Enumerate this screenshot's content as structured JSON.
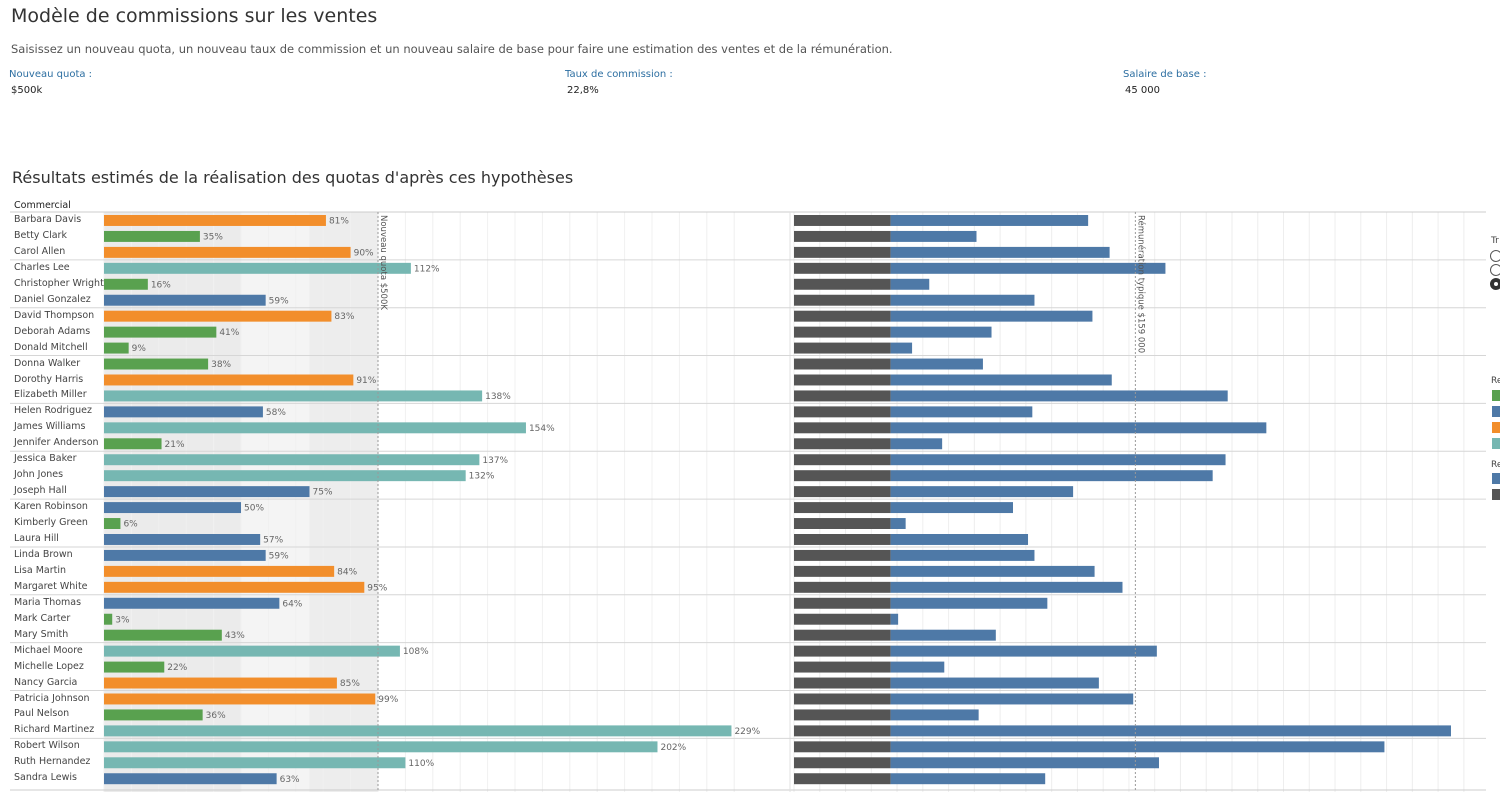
{
  "header": {
    "title": "Modèle de commissions sur les ventes",
    "subtitle": "Saisissez un nouveau quota, un nouveau taux de commission et un nouveau salaire de base pour faire une estimation des ventes et de la rémunération."
  },
  "parameters": [
    {
      "label": "Nouveau quota :",
      "value": "$500k"
    },
    {
      "label": "Taux de commission :",
      "value": "22,8%"
    },
    {
      "label": "Salaire de base :",
      "value": "45 000"
    }
  ],
  "section_title": "Résultats estimés de la réalisation des quotas d'après ces hypothèses",
  "column_header": "Commercial",
  "colors": {
    "green": "#59a14f",
    "blue": "#4e79a7",
    "orange": "#f28e2b",
    "teal": "#76b7b2",
    "dark": "#555555",
    "band1": "#ebebeb",
    "band2": "#f4f4f4"
  },
  "chart_data": [
    {
      "type": "bar",
      "title": "",
      "reference_line": {
        "label": "Nouveau quota $500K",
        "value": 100
      },
      "unit": "%",
      "categories": [
        "Barbara Davis",
        "Betty Clark",
        "Carol Allen",
        "Charles Lee",
        "Christopher Wright",
        "Daniel Gonzalez",
        "David Thompson",
        "Deborah Adams",
        "Donald Mitchell",
        "Donna Walker",
        "Dorothy Harris",
        "Elizabeth Miller",
        "Helen Rodriguez",
        "James Williams",
        "Jennifer Anderson",
        "Jessica Baker",
        "John Jones",
        "Joseph Hall",
        "Karen Robinson",
        "Kimberly Green",
        "Laura Hill",
        "Linda Brown",
        "Lisa Martin",
        "Margaret White",
        "Maria Thomas",
        "Mark Carter",
        "Mary Smith",
        "Michael Moore",
        "Michelle Lopez",
        "Nancy Garcia",
        "Patricia Johnson",
        "Paul Nelson",
        "Richard Martinez",
        "Robert Wilson",
        "Ruth Hernandez",
        "Sandra Lewis"
      ],
      "values": [
        81,
        35,
        90,
        112,
        16,
        59,
        83,
        41,
        9,
        38,
        91,
        138,
        58,
        154,
        21,
        137,
        132,
        75,
        50,
        6,
        57,
        59,
        84,
        95,
        64,
        3,
        43,
        108,
        22,
        85,
        99,
        36,
        229,
        202,
        110,
        63
      ],
      "value_labels": [
        "81%",
        "35%",
        "90%",
        "112%",
        "16%",
        "59%",
        "83%",
        "41%",
        "9%",
        "38%",
        "91%",
        "138%",
        "58%",
        "154%",
        "21%",
        "137%",
        "132%",
        "75%",
        "50%",
        "6%",
        "57%",
        "59%",
        "84%",
        "95%",
        "64%",
        "3%",
        "43%",
        "108%",
        "22%",
        "85%",
        "99%",
        "36%",
        "229%",
        "202%",
        "110%",
        "63%"
      ],
      "groups": [
        "orange",
        "green",
        "orange",
        "teal",
        "green",
        "blue",
        "orange",
        "green",
        "green",
        "green",
        "orange",
        "teal",
        "blue",
        "teal",
        "green",
        "teal",
        "teal",
        "blue",
        "blue",
        "green",
        "blue",
        "blue",
        "orange",
        "orange",
        "blue",
        "green",
        "green",
        "teal",
        "green",
        "orange",
        "orange",
        "green",
        "teal",
        "teal",
        "teal",
        "blue"
      ]
    },
    {
      "type": "bar",
      "title": "",
      "stacked": true,
      "reference_line": {
        "label": "Rémunération typique $159 000",
        "value": 159000
      },
      "series": [
        {
          "values": [
            45000,
            45000,
            45000,
            45000,
            45000,
            45000,
            45000,
            45000,
            45000,
            45000,
            45000,
            45000,
            45000,
            45000,
            45000,
            45000,
            45000,
            45000,
            45000,
            45000,
            45000,
            45000,
            45000,
            45000,
            45000,
            45000,
            45000,
            45000,
            45000,
            45000,
            45000,
            45000,
            45000,
            45000,
            45000,
            45000
          ]
        },
        {
          "values": [
            92000,
            40000,
            102000,
            128000,
            18000,
            67000,
            94000,
            47000,
            10000,
            43000,
            103000,
            157000,
            66000,
            175000,
            24000,
            156000,
            150000,
            85000,
            57000,
            7000,
            64000,
            67000,
            95000,
            108000,
            73000,
            3500,
            49000,
            124000,
            25000,
            97000,
            113000,
            41000,
            261000,
            230000,
            125000,
            72000
          ]
        }
      ]
    }
  ],
  "legend": {
    "fragment_1": "Tr",
    "fragment_2": "Re",
    "fragment_3": "Re"
  }
}
